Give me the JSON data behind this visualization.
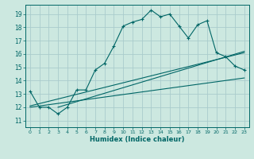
{
  "xlabel": "Humidex (Indice chaleur)",
  "bg_color": "#cce8e0",
  "grid_color": "#aacccc",
  "line_color": "#006666",
  "xlim": [
    -0.5,
    23.5
  ],
  "ylim": [
    10.5,
    19.7
  ],
  "yticks": [
    11,
    12,
    13,
    14,
    15,
    16,
    17,
    18,
    19
  ],
  "xticks": [
    0,
    1,
    2,
    3,
    4,
    5,
    6,
    7,
    8,
    9,
    10,
    11,
    12,
    13,
    14,
    15,
    16,
    17,
    18,
    19,
    20,
    21,
    22,
    23
  ],
  "main_x": [
    0,
    1,
    2,
    3,
    4,
    5,
    6,
    7,
    8,
    9,
    10,
    11,
    12,
    13,
    14,
    15,
    16,
    17,
    18,
    19,
    20,
    21,
    22,
    23
  ],
  "main_y": [
    13.2,
    12.0,
    12.0,
    11.5,
    12.0,
    13.3,
    13.3,
    14.8,
    15.3,
    16.6,
    18.1,
    18.4,
    18.6,
    19.3,
    18.8,
    19.0,
    18.1,
    17.2,
    18.2,
    18.5,
    16.1,
    15.8,
    15.1,
    14.8
  ],
  "line1_x": [
    0,
    23
  ],
  "line1_y": [
    12.1,
    16.1
  ],
  "line2_x": [
    0,
    23
  ],
  "line2_y": [
    12.0,
    14.2
  ],
  "line3_x": [
    3,
    23
  ],
  "line3_y": [
    12.0,
    16.2
  ]
}
